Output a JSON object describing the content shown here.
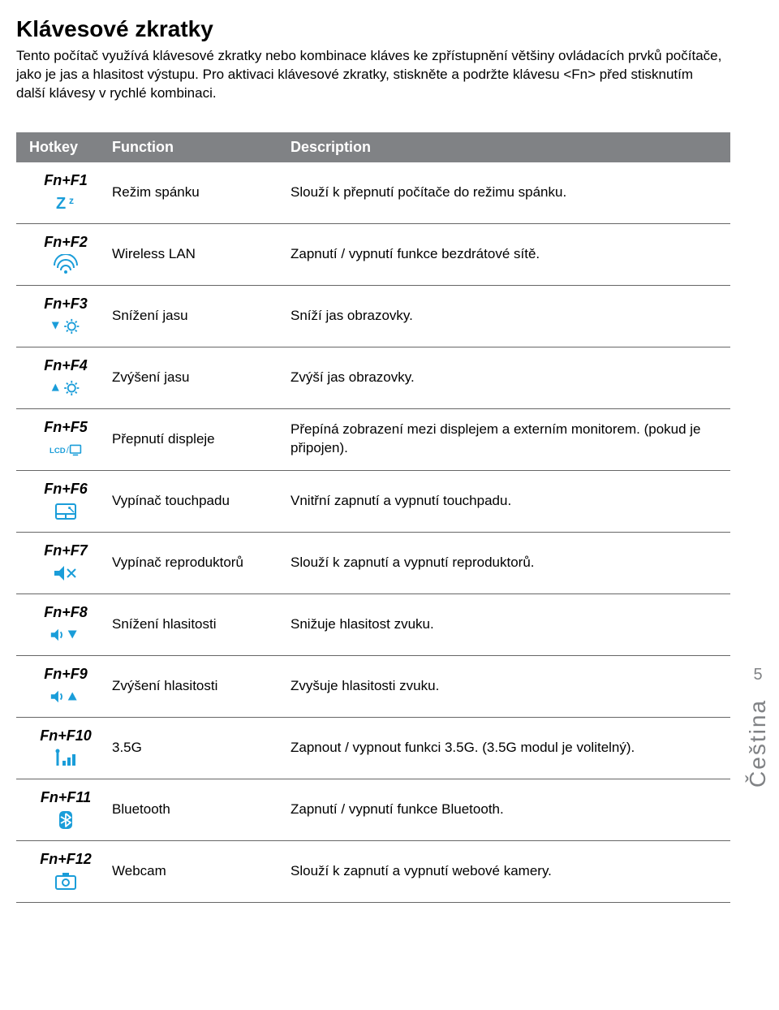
{
  "title": "Klávesové zkratky",
  "intro": "Tento počítač využívá klávesové zkratky nebo kombinace kláves ke zpřístupnění většiny ovládacích prvků počítače, jako je jas a hlasitost výstupu. Pro aktivaci klávesové zkratky, stiskněte a podržte klávesu <Fn> před stisknutím další klávesy v rychlé kombinaci.",
  "header": {
    "hotkey": "Hotkey",
    "function": "Function",
    "description": "Description"
  },
  "rows": [
    {
      "key": "Fn+F1",
      "icon": "sleep",
      "func": "Režim spánku",
      "desc": "Slouží k přepnutí počítače do režimu spánku."
    },
    {
      "key": "Fn+F2",
      "icon": "wifi",
      "func": "Wireless LAN",
      "desc": "Zapnutí / vypnutí funkce bezdrátové sítě."
    },
    {
      "key": "Fn+F3",
      "icon": "bright-dn",
      "func": "Snížení jasu",
      "desc": "Sníží jas obrazovky."
    },
    {
      "key": "Fn+F4",
      "icon": "bright-up",
      "func": "Zvýšení jasu",
      "desc": "Zvýší jas obrazovky."
    },
    {
      "key": "Fn+F5",
      "icon": "lcd",
      "func": "Přepnutí displeje",
      "desc": "Přepíná zobrazení mezi displejem a externím monitorem. (pokud je připojen)."
    },
    {
      "key": "Fn+F6",
      "icon": "touchpad",
      "func": "Vypínač touchpadu",
      "desc": "Vnitřní zapnutí a vypnutí touchpadu."
    },
    {
      "key": "Fn+F7",
      "icon": "mute",
      "func": "Vypínač reproduktorů",
      "desc": "Slouží k zapnutí a vypnutí reproduktorů."
    },
    {
      "key": "Fn+F8",
      "icon": "vol-dn",
      "func": "Snížení hlasitosti",
      "desc": "Snižuje hlasitost zvuku."
    },
    {
      "key": "Fn+F9",
      "icon": "vol-up",
      "func": "Zvýšení hlasitosti",
      "desc": "Zvyšuje hlasitosti zvuku."
    },
    {
      "key": "Fn+F10",
      "icon": "3g",
      "func": "3.5G",
      "desc": "Zapnout / vypnout funkci 3.5G. (3.5G modul je volitelný)."
    },
    {
      "key": "Fn+F11",
      "icon": "bluetooth",
      "func": "Bluetooth",
      "desc": "Zapnutí / vypnutí funkce Bluetooth."
    },
    {
      "key": "Fn+F12",
      "icon": "webcam",
      "func": "Webcam",
      "desc": "Slouží k zapnutí a vypnutí webové kamery."
    }
  ],
  "pageNumber": "5",
  "language": "Čeština",
  "iconColor": "#1a9dd9"
}
